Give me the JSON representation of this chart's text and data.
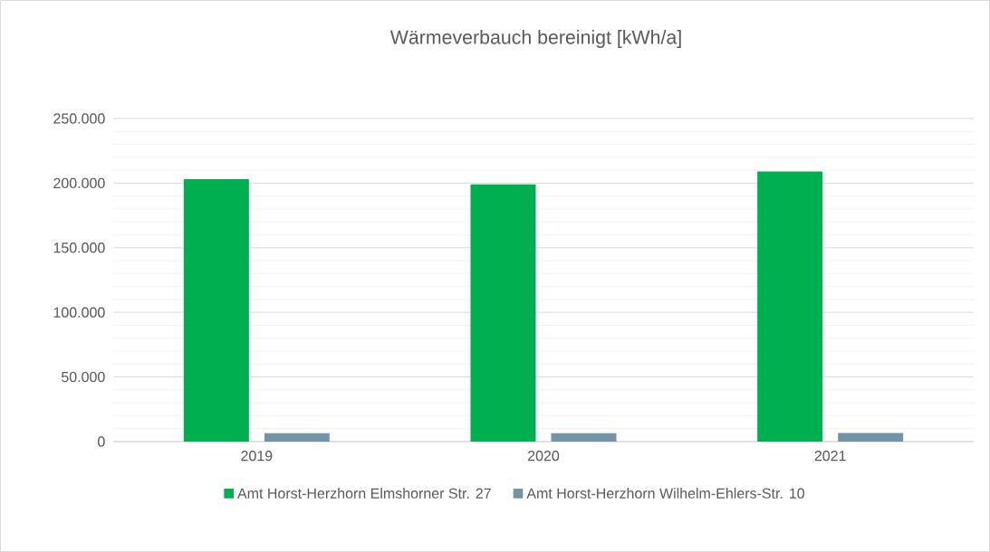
{
  "chart_data": {
    "type": "bar",
    "title": "Wärmeverbauch bereinigt [kWh/a]",
    "categories": [
      "2019",
      "2020",
      "2021"
    ],
    "series": [
      {
        "name": "Amt Horst-Herzhorn Elmshorner Str. 27",
        "color": "#00b050",
        "values": [
          203000,
          199000,
          209000
        ]
      },
      {
        "name": "Amt Horst-Herzhorn Wilhelm-Ehlers-Str. 10",
        "color": "#7393a7",
        "values": [
          6500,
          6500,
          6700
        ]
      }
    ],
    "ylim": [
      0,
      250000
    ],
    "yticks": [
      0,
      {
        "value": 50000,
        "label": "50.000"
      },
      {
        "value": 100000,
        "label": "100.000"
      },
      {
        "value": 150000,
        "label": "150.000"
      },
      {
        "value": 200000,
        "label": "200.000"
      },
      {
        "value": 250000,
        "label": "250.000"
      }
    ],
    "grid": "y",
    "legend": "bottom"
  }
}
